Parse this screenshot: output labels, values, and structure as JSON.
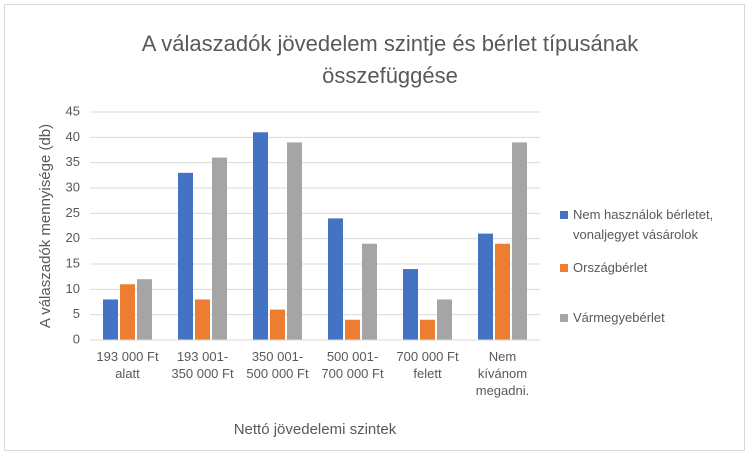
{
  "chart_data": {
    "type": "bar",
    "title": "A válaszadók jövedelem szintje és bérlet típusának\nösszefüggése",
    "x_label": "Nettó jövedelemi szintek",
    "y_label": "A válaszadók mennyisége (db)",
    "categories": [
      "193 000 Ft\nalatt",
      "193 001-\n350 000 Ft",
      "350 001-\n500 000 Ft",
      "500 001-\n700 000 Ft",
      "700 000 Ft\nfelett",
      "Nem\nkívánom\nmegadni."
    ],
    "series": [
      {
        "name": "Nem használok bérletet,\nvonaljegyet vásárolok",
        "color": "#4472c4",
        "values": [
          8,
          33,
          41,
          24,
          14,
          21
        ]
      },
      {
        "name": "Országbérlet",
        "color": "#ed7d31",
        "values": [
          11,
          8,
          6,
          4,
          4,
          19
        ]
      },
      {
        "name": "Vármegyebérlet",
        "color": "#a5a5a5",
        "values": [
          12,
          36,
          39,
          19,
          8,
          39
        ]
      }
    ],
    "ylim": [
      0,
      45
    ],
    "yticks": [
      0,
      5,
      10,
      15,
      20,
      25,
      30,
      35,
      40,
      45
    ],
    "grid": true,
    "legend": "right"
  }
}
